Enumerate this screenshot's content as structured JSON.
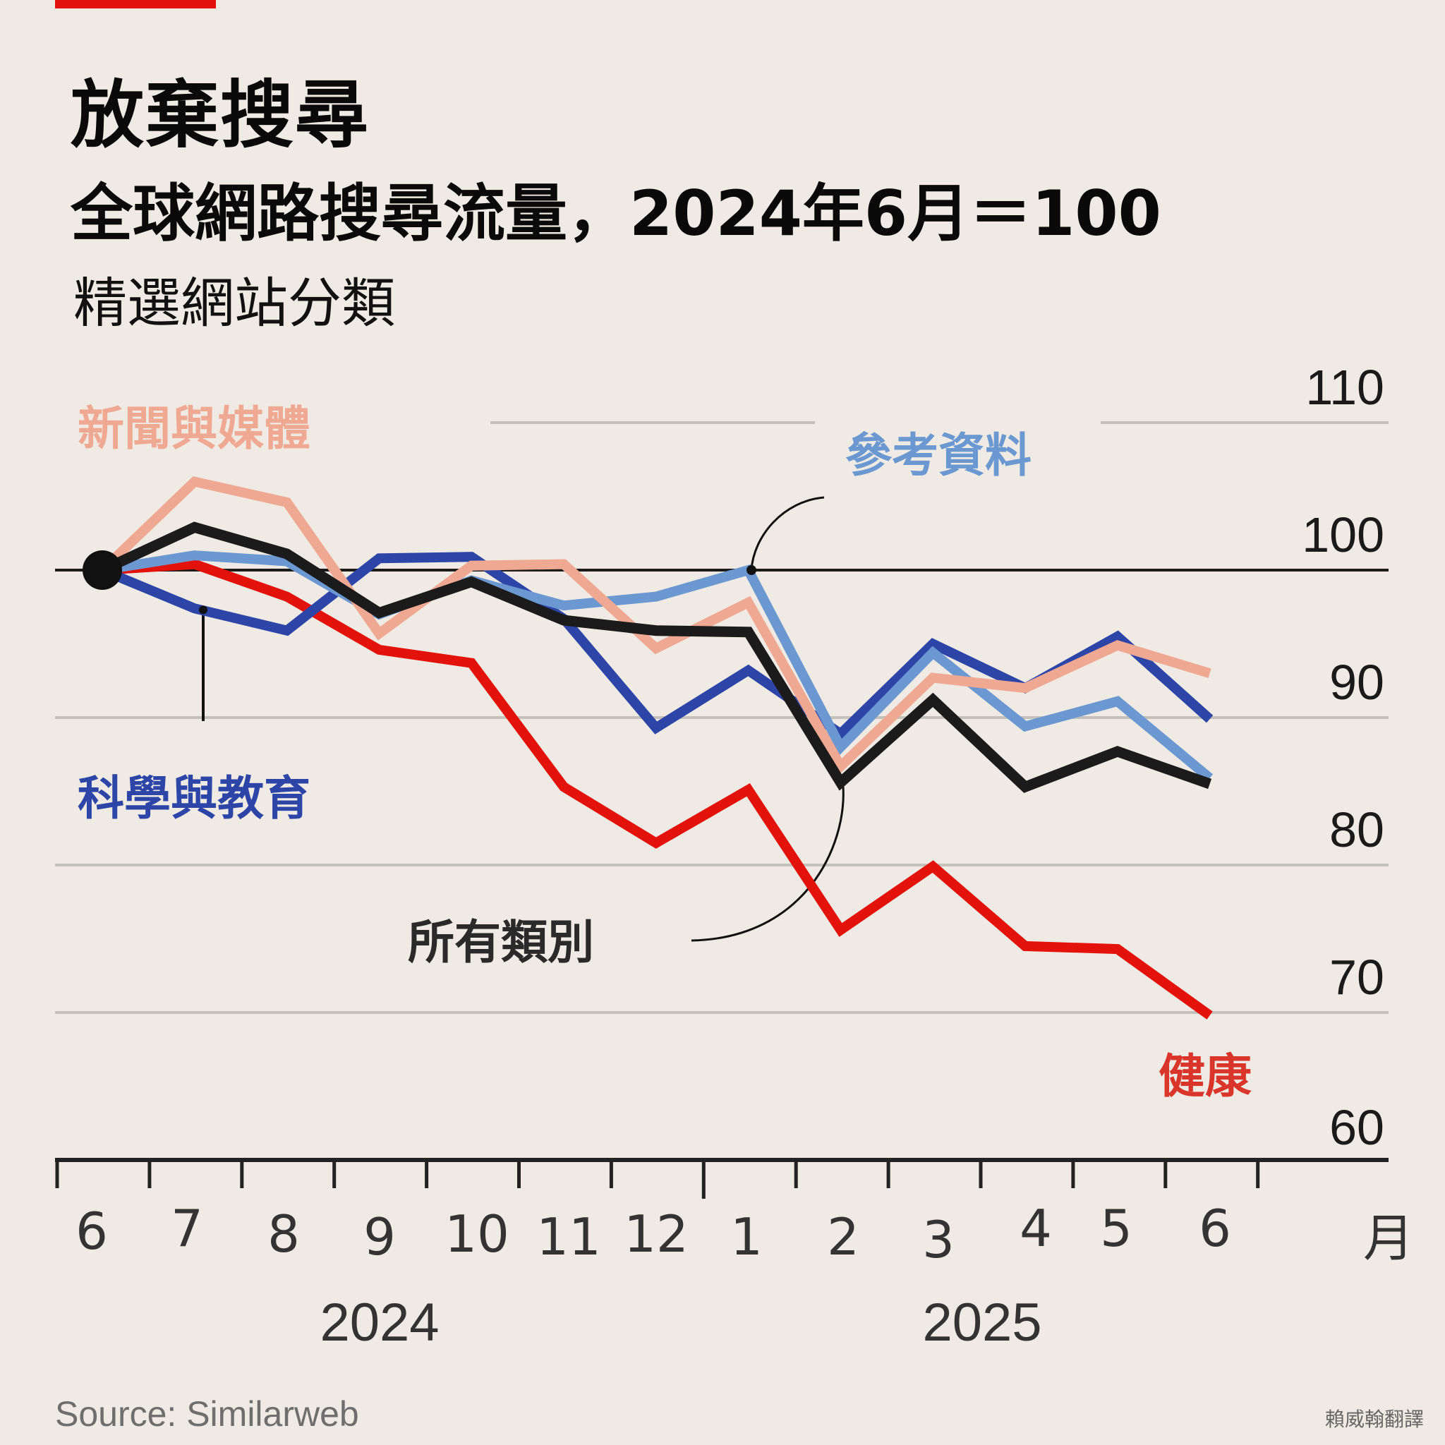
{
  "header": {
    "title": "放棄搜尋",
    "subtitle": "全球網路搜尋流量，2024年6月＝100",
    "subsubtitle": "精選網站分類"
  },
  "footer": {
    "source": "Source: Similarweb",
    "credit": "賴威翰翻譯"
  },
  "colors": {
    "brand_bar": "#E3120B",
    "background": "#EFEBE4"
  },
  "chart_data": {
    "type": "line",
    "title": "全球網路搜尋流量，2024年6月＝100",
    "xlabel": "月",
    "ylabel": "",
    "ylim": [
      60,
      110
    ],
    "yticks": [
      "60",
      "70",
      "80",
      "90",
      "100",
      "110"
    ],
    "ytick_values": [
      60,
      70,
      80,
      90,
      100,
      110
    ],
    "x_tick_labels": [
      "6",
      "7",
      "8",
      "9",
      "10",
      "11",
      "12",
      "1",
      "2",
      "3",
      "4",
      "5",
      "6"
    ],
    "x_unit_label": "月",
    "year_labels": [
      "2024",
      "2025"
    ],
    "x": [
      "2024-06",
      "2024-07",
      "2024-08",
      "2024-09",
      "2024-10",
      "2024-11",
      "2024-12",
      "2025-01",
      "2025-02",
      "2025-03",
      "2025-04",
      "2025-05",
      "2025-06"
    ],
    "baseline": 100,
    "grid": true,
    "legend": "inline-labels",
    "series": [
      {
        "name": "健康",
        "color": "#E3120B",
        "values": [
          100,
          100.4,
          98.2,
          94.6,
          93.7,
          85.3,
          81.5,
          85.1,
          75.6,
          79.9,
          74.5,
          74.3,
          69.8
        ]
      },
      {
        "name": "科學與教育",
        "color": "#2E45A8",
        "values": [
          100,
          97.4,
          95.9,
          100.8,
          100.9,
          96.7,
          89.3,
          93.2,
          88.9,
          95.0,
          92.0,
          95.5,
          89.9
        ]
      },
      {
        "name": "參考資料",
        "color": "#6B98D0",
        "values": [
          100,
          101.0,
          100.6,
          97.0,
          99.3,
          97.6,
          98.2,
          100.0,
          88.0,
          94.4,
          89.4,
          91.1,
          85.9
        ]
      },
      {
        "name": "新聞與媒體",
        "color": "#EFA993",
        "values": [
          100,
          106.0,
          104.6,
          95.7,
          100.3,
          100.4,
          94.7,
          97.8,
          86.7,
          92.7,
          92.0,
          94.9,
          93.0
        ]
      },
      {
        "name": "所有類別",
        "color": "#1B1B1B",
        "values": [
          100,
          102.9,
          101.1,
          97.1,
          99.2,
          96.6,
          95.9,
          95.8,
          85.6,
          91.2,
          85.3,
          87.7,
          85.5
        ]
      }
    ],
    "labels": {
      "news": "新聞與媒體",
      "reference": "參考資料",
      "science": "科學與教育",
      "all": "所有類別",
      "health": "健康"
    }
  }
}
